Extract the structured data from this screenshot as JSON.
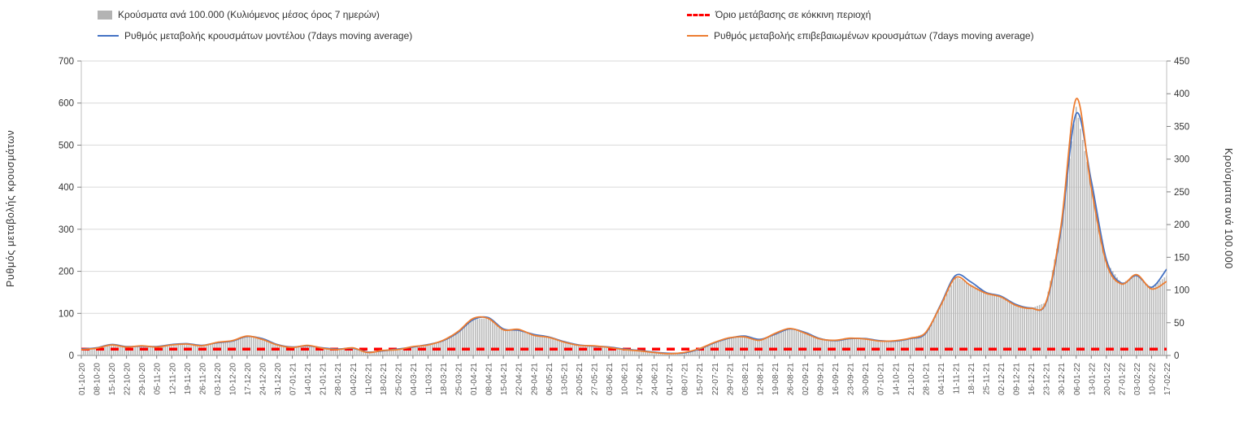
{
  "legend": {
    "items": [
      {
        "id": "cases-bars",
        "label": "Κρούσματα ανά 100.000 (Κυλιόμενος μέσος όρος 7 ημερών)",
        "color": "#b3b3b3",
        "marker": "bar"
      },
      {
        "id": "threshold",
        "label": "Όριο μετάβασης σε κόκκινη περιοχή",
        "color": "#ff0000",
        "marker": "dashed-line"
      },
      {
        "id": "model",
        "label": "Ρυθμός μεταβολής κρουσμάτων μοντέλου (7days moving average)",
        "color": "#4472c4",
        "marker": "line"
      },
      {
        "id": "confirmed",
        "label": "Ρυθμός μεταβολής επιβεβαιωμένων κρουσμάτων (7days moving average)",
        "color": "#ed7d31",
        "marker": "line"
      }
    ]
  },
  "chart_data": {
    "type": "combo",
    "title": "",
    "xlabel": "",
    "ylabel_left": "Ρυθμός μεταβολής κρουσμάτων",
    "ylabel_right": "Κρούσματα ανά 100.000",
    "ylim_left": [
      0,
      700
    ],
    "ylim_right": [
      0,
      450
    ],
    "yticks_left": [
      0,
      100,
      200,
      300,
      400,
      500,
      600,
      700
    ],
    "yticks_right": [
      0,
      50,
      100,
      150,
      200,
      250,
      300,
      350,
      400,
      450
    ],
    "grid": true,
    "legend_position": "top",
    "categories": [
      "01-10-20",
      "08-10-20",
      "15-10-20",
      "22-10-20",
      "29-10-20",
      "05-11-20",
      "12-11-20",
      "19-11-20",
      "26-11-20",
      "03-12-20",
      "10-12-20",
      "17-12-20",
      "24-12-20",
      "31-12-20",
      "07-01-21",
      "14-01-21",
      "21-01-21",
      "28-01-21",
      "04-02-21",
      "11-02-21",
      "18-02-21",
      "25-02-21",
      "04-03-21",
      "11-03-21",
      "18-03-21",
      "25-03-21",
      "01-04-21",
      "08-04-21",
      "15-04-21",
      "22-04-21",
      "29-04-21",
      "06-05-21",
      "13-05-21",
      "20-05-21",
      "27-05-21",
      "03-06-21",
      "10-06-21",
      "17-06-21",
      "24-06-21",
      "01-07-21",
      "08-07-21",
      "15-07-21",
      "22-07-21",
      "29-07-21",
      "05-08-21",
      "12-08-21",
      "19-08-21",
      "26-08-21",
      "02-09-21",
      "09-09-21",
      "16-09-21",
      "23-09-21",
      "30-09-21",
      "07-10-21",
      "14-10-21",
      "21-10-21",
      "28-10-21",
      "04-11-21",
      "11-11-21",
      "18-11-21",
      "25-11-21",
      "02-12-21",
      "09-12-21",
      "16-12-21",
      "23-12-21",
      "30-12-21",
      "06-01-22",
      "13-01-22",
      "20-01-22",
      "27-01-22",
      "03-02-22",
      "10-02-22",
      "17-02-22"
    ],
    "series": [
      {
        "id": "cases-bars",
        "name": "Κρούσματα ανά 100.000 (Κυλιόμενος μέσος όρος 7 ημερών)",
        "type": "bar",
        "axis": "right",
        "color": "#b8b8b8",
        "values": [
          9,
          11,
          16,
          13,
          14,
          13,
          16,
          18,
          15,
          19,
          22,
          29,
          25,
          16,
          12,
          15,
          11,
          9,
          11,
          5,
          7,
          9,
          13,
          16,
          23,
          36,
          55,
          57,
          40,
          39,
          31,
          28,
          21,
          16,
          14,
          12,
          9,
          7,
          5,
          3,
          4,
          10,
          20,
          27,
          29,
          24,
          33,
          41,
          35,
          25,
          23,
          26,
          25,
          22,
          22,
          26,
          34,
          76,
          120,
          109,
          96,
          90,
          77,
          72,
          81,
          196,
          380,
          262,
          143,
          110,
          123,
          103,
          122
        ]
      },
      {
        "id": "model",
        "name": "Ρυθμός μεταβολής κρουσμάτων μοντέλου (7days moving average)",
        "type": "line",
        "axis": "left",
        "color": "#4472c4",
        "values": [
          15,
          18,
          26,
          21,
          22,
          21,
          26,
          28,
          24,
          30,
          34,
          45,
          40,
          26,
          20,
          23,
          18,
          15,
          17,
          8,
          11,
          15,
          20,
          26,
          35,
          55,
          85,
          90,
          63,
          60,
          50,
          44,
          33,
          25,
          22,
          20,
          15,
          12,
          8,
          5,
          6,
          15,
          30,
          41,
          46,
          38,
          50,
          63,
          55,
          40,
          35,
          40,
          40,
          35,
          34,
          40,
          52,
          120,
          190,
          175,
          150,
          141,
          121,
          113,
          125,
          300,
          575,
          415,
          228,
          172,
          190,
          162,
          205
        ]
      },
      {
        "id": "confirmed",
        "name": "Ρυθμός μεταβολής επιβεβαιωμένων κρουσμάτων (7days moving average)",
        "type": "line",
        "axis": "left",
        "color": "#ed7d31",
        "values": [
          14,
          17,
          25,
          20,
          23,
          20,
          25,
          27,
          23,
          31,
          35,
          46,
          38,
          25,
          19,
          24,
          17,
          14,
          18,
          7,
          12,
          14,
          21,
          25,
          36,
          57,
          88,
          88,
          61,
          62,
          48,
          43,
          32,
          24,
          23,
          19,
          14,
          11,
          7,
          4,
          7,
          16,
          31,
          42,
          44,
          36,
          52,
          64,
          53,
          39,
          36,
          41,
          39,
          34,
          35,
          41,
          54,
          118,
          185,
          166,
          148,
          139,
          119,
          112,
          127,
          310,
          610,
          398,
          220,
          170,
          192,
          158,
          176
        ]
      }
    ],
    "threshold": {
      "name": "Όριο μετάβασης σε κόκκινη περιοχή",
      "axis": "left",
      "value": 15,
      "color": "#ff0000",
      "style": "dashed"
    }
  }
}
